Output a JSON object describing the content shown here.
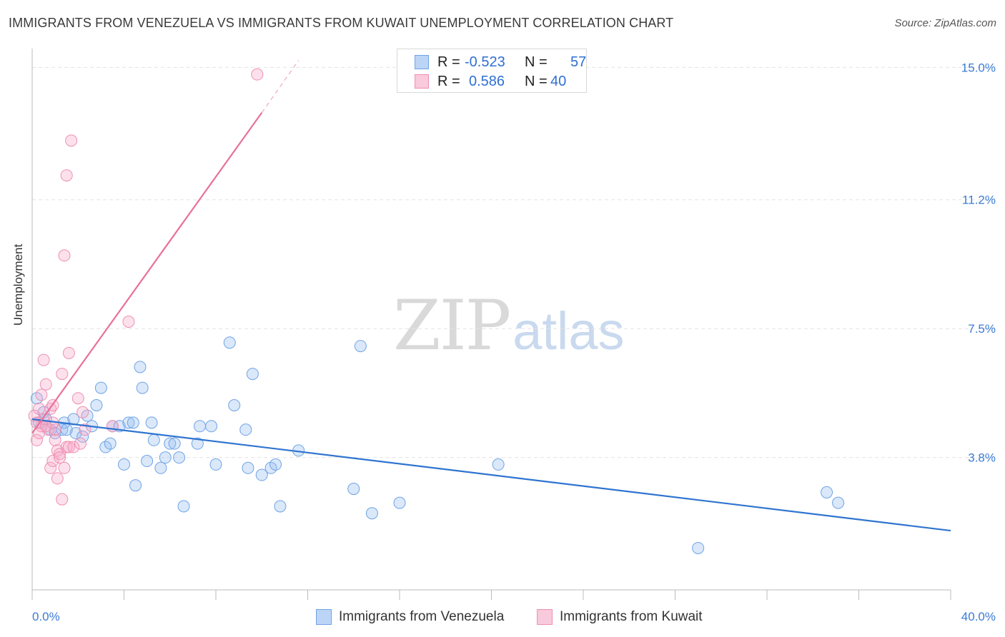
{
  "header": {
    "title": "IMMIGRANTS FROM VENEZUELA VS IMMIGRANTS FROM KUWAIT UNEMPLOYMENT CORRELATION CHART",
    "source": "Source: ZipAtlas.com"
  },
  "watermark": {
    "zip": "ZIP",
    "atlas": "atlas"
  },
  "legend": {
    "rows": [
      {
        "r_label": "R =",
        "r_value": "-0.523",
        "n_label": "N =",
        "n_value": "57",
        "color": "#6fa3e6",
        "fill": "#bcd4f5"
      },
      {
        "r_label": "R =",
        "r_value": "0.586",
        "n_label": "N =",
        "n_value": "40",
        "color": "#ef8fb0",
        "fill": "#f8cadb"
      }
    ]
  },
  "bottom_legend": [
    {
      "label": "Immigrants from Venezuela",
      "color": "#6fa3e6",
      "fill": "#bcd4f5"
    },
    {
      "label": "Immigrants from Kuwait",
      "color": "#ef8fb0",
      "fill": "#f8cadb"
    }
  ],
  "chart_data": {
    "type": "scatter",
    "title": "IMMIGRANTS FROM VENEZUELA VS IMMIGRANTS FROM KUWAIT UNEMPLOYMENT CORRELATION CHART",
    "xlabel": "",
    "ylabel": "Unemployment",
    "xlim": [
      0,
      40
    ],
    "ylim": [
      0,
      15.5
    ],
    "x_tick_labels": [
      "0.0%",
      "40.0%"
    ],
    "y_ticks": [
      3.8,
      7.5,
      11.2,
      15.0
    ],
    "y_tick_labels": [
      "3.8%",
      "7.5%",
      "11.2%",
      "15.0%"
    ],
    "grid": true,
    "legend_position": "top-center",
    "series": [
      {
        "name": "Immigrants from Venezuela",
        "color": "#3a7bd5",
        "points": [
          [
            0.2,
            5.5
          ],
          [
            0.3,
            4.8
          ],
          [
            0.5,
            5.1
          ],
          [
            0.6,
            4.9
          ],
          [
            0.8,
            4.6
          ],
          [
            1.0,
            4.5
          ],
          [
            1.3,
            4.6
          ],
          [
            1.4,
            4.8
          ],
          [
            1.8,
            4.9
          ],
          [
            1.9,
            4.5
          ],
          [
            2.2,
            4.4
          ],
          [
            2.4,
            5.0
          ],
          [
            2.6,
            4.7
          ],
          [
            2.8,
            5.3
          ],
          [
            3.0,
            5.8
          ],
          [
            3.2,
            4.1
          ],
          [
            3.4,
            4.2
          ],
          [
            3.5,
            4.7
          ],
          [
            3.8,
            4.7
          ],
          [
            4.0,
            3.6
          ],
          [
            4.2,
            4.8
          ],
          [
            4.4,
            4.8
          ],
          [
            4.5,
            3.0
          ],
          [
            4.7,
            6.4
          ],
          [
            4.8,
            5.8
          ],
          [
            5.0,
            3.7
          ],
          [
            5.2,
            4.8
          ],
          [
            5.3,
            4.3
          ],
          [
            5.6,
            3.5
          ],
          [
            5.8,
            3.8
          ],
          [
            6.0,
            4.2
          ],
          [
            6.2,
            4.2
          ],
          [
            6.4,
            3.8
          ],
          [
            6.6,
            2.4
          ],
          [
            7.2,
            4.2
          ],
          [
            7.3,
            4.7
          ],
          [
            7.8,
            4.7
          ],
          [
            8.0,
            3.6
          ],
          [
            8.6,
            7.1
          ],
          [
            8.8,
            5.3
          ],
          [
            9.3,
            4.6
          ],
          [
            9.4,
            3.5
          ],
          [
            9.6,
            6.2
          ],
          [
            10.0,
            3.3
          ],
          [
            10.4,
            3.5
          ],
          [
            10.6,
            3.6
          ],
          [
            10.8,
            2.4
          ],
          [
            11.6,
            4.0
          ],
          [
            14.0,
            2.9
          ],
          [
            14.3,
            7.0
          ],
          [
            14.8,
            2.2
          ],
          [
            16.0,
            2.5
          ],
          [
            20.3,
            3.6
          ],
          [
            29.0,
            1.2
          ],
          [
            34.6,
            2.8
          ],
          [
            35.1,
            2.5
          ],
          [
            1.5,
            4.6
          ]
        ],
        "trend": {
          "x": [
            0,
            40
          ],
          "y": [
            4.9,
            1.7
          ]
        }
      },
      {
        "name": "Immigrants from Kuwait",
        "color": "#e8709a",
        "points": [
          [
            0.1,
            5.0
          ],
          [
            0.2,
            4.8
          ],
          [
            0.2,
            4.3
          ],
          [
            0.3,
            5.2
          ],
          [
            0.3,
            4.5
          ],
          [
            0.4,
            5.6
          ],
          [
            0.4,
            4.7
          ],
          [
            0.5,
            6.6
          ],
          [
            0.5,
            4.9
          ],
          [
            0.6,
            5.9
          ],
          [
            0.7,
            4.6
          ],
          [
            0.8,
            3.5
          ],
          [
            0.8,
            5.2
          ],
          [
            0.9,
            3.7
          ],
          [
            0.9,
            5.3
          ],
          [
            1.0,
            4.3
          ],
          [
            1.0,
            4.6
          ],
          [
            1.1,
            3.2
          ],
          [
            1.1,
            4.0
          ],
          [
            1.2,
            3.9
          ],
          [
            1.2,
            3.8
          ],
          [
            1.3,
            2.6
          ],
          [
            1.3,
            6.2
          ],
          [
            1.4,
            9.6
          ],
          [
            1.4,
            3.5
          ],
          [
            1.5,
            11.9
          ],
          [
            1.5,
            4.1
          ],
          [
            1.6,
            6.8
          ],
          [
            1.6,
            4.1
          ],
          [
            1.7,
            12.9
          ],
          [
            1.8,
            4.1
          ],
          [
            2.0,
            5.5
          ],
          [
            2.1,
            4.2
          ],
          [
            2.2,
            5.1
          ],
          [
            2.3,
            4.6
          ],
          [
            3.5,
            4.7
          ],
          [
            4.2,
            7.7
          ],
          [
            9.8,
            14.8
          ],
          [
            0.6,
            4.7
          ],
          [
            0.9,
            4.8
          ]
        ],
        "trend": {
          "x": [
            0,
            10
          ],
          "y": [
            4.5,
            13.7
          ]
        },
        "trend_extension": {
          "x": [
            10,
            11.6
          ],
          "y": [
            13.7,
            15.2
          ]
        }
      }
    ]
  }
}
